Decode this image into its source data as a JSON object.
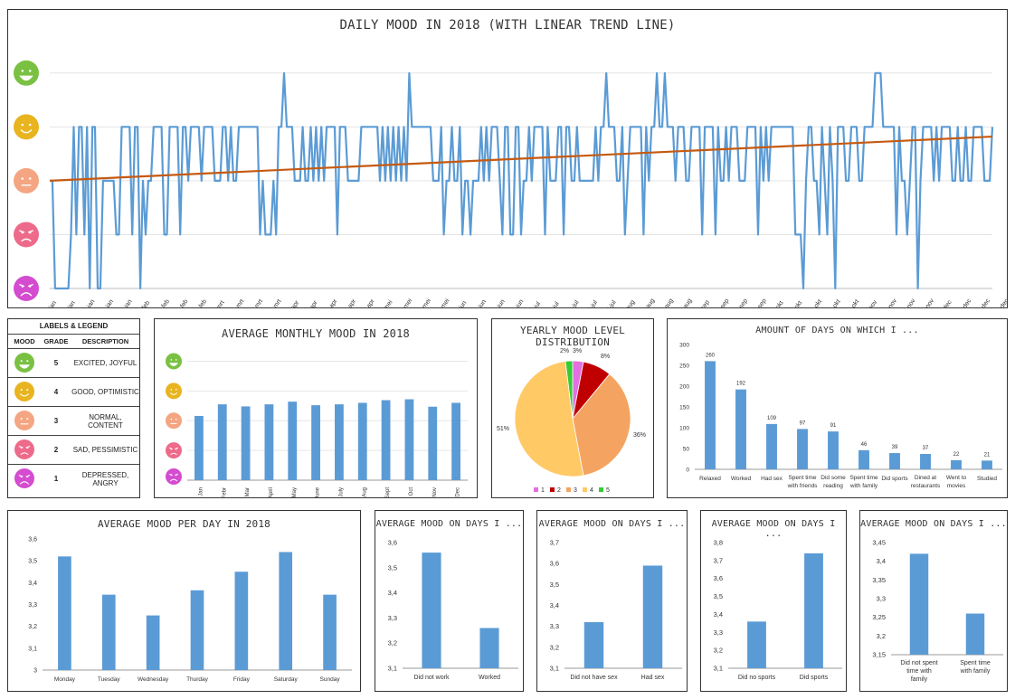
{
  "colors": {
    "bar": "#5b9bd5",
    "line": "#5b9bd5",
    "trend": "#c55a11",
    "face5": "#7ac143",
    "face4": "#e8b420",
    "face3": "#f4a582",
    "face2": "#ee6a8a",
    "face1": "#d44ccf"
  },
  "daily": {
    "title": "DAILY MOOD IN 2018 (WITH LINEAR TREND LINE)",
    "ylim": [
      1,
      5.5
    ],
    "xlabels": [
      "1-jan",
      "8-jan",
      "15-jan",
      "22-jan",
      "29-jan",
      "5-feb",
      "12-feb",
      "19-feb",
      "26-feb",
      "5-mrt",
      "12-mrt",
      "19-mrt",
      "26-mrt",
      "2-apr",
      "9-apr",
      "16-apr",
      "23-apr",
      "30-apr",
      "7-mei",
      "14-mei",
      "21-mei",
      "28-mei",
      "4-jun",
      "11-jun",
      "18-jun",
      "25-jun",
      "2-jul",
      "9-jul",
      "16-jul",
      "23-jul",
      "30-jul",
      "6-aug",
      "13-aug",
      "20-aug",
      "27-aug",
      "3-sep",
      "10-sep",
      "17-sep",
      "24-sep",
      "1-okt",
      "8-okt",
      "15-okt",
      "22-okt",
      "29-okt",
      "5-nov",
      "12-nov",
      "19-nov",
      "26-nov",
      "3-dec",
      "10-dec",
      "17-dec",
      "24-dec"
    ],
    "trend": [
      3,
      3.82
    ],
    "values": [
      3,
      3,
      1,
      1,
      1,
      1,
      1,
      1,
      2,
      4,
      2,
      4,
      4,
      2,
      4,
      1,
      4,
      4,
      1,
      1,
      3,
      3,
      3,
      3,
      3,
      2,
      2,
      4,
      4,
      4,
      4,
      2,
      4,
      4,
      1,
      3,
      2,
      3,
      3,
      4,
      4,
      4,
      4,
      2,
      2,
      4,
      4,
      4,
      4,
      2,
      4,
      4,
      3,
      4,
      4,
      4,
      4,
      3,
      4,
      4,
      4,
      4,
      3,
      3,
      3,
      4,
      4,
      3,
      4,
      3,
      3,
      4,
      4,
      4,
      4,
      4,
      4,
      4,
      4,
      2,
      3,
      2,
      2,
      2,
      3,
      2,
      4,
      4,
      5,
      4,
      4,
      4,
      3,
      3,
      3,
      4,
      3,
      3,
      4,
      3,
      4,
      3,
      4,
      3,
      4,
      4,
      4,
      4,
      2,
      4,
      4,
      4,
      3,
      3,
      3,
      3,
      3,
      4,
      4,
      4,
      4,
      4,
      4,
      4,
      3,
      4,
      3,
      4,
      3,
      4,
      3,
      4,
      3,
      4,
      3,
      5,
      4,
      4,
      4,
      4,
      4,
      4,
      4,
      4,
      3,
      3,
      3,
      4,
      2,
      3,
      3,
      4,
      3,
      3,
      4,
      2,
      3,
      3,
      2,
      3,
      3,
      3,
      4,
      3,
      4,
      3,
      4,
      4,
      4,
      3,
      2,
      4,
      4,
      2,
      2,
      4,
      4,
      2,
      3,
      3,
      4,
      3,
      4,
      4,
      4,
      4,
      2,
      4,
      3,
      3,
      3,
      4,
      4,
      2,
      4,
      4,
      3,
      3,
      4,
      3,
      3,
      3,
      3,
      3,
      3,
      4,
      3,
      4,
      4,
      5,
      4,
      4,
      4,
      3,
      3,
      4,
      2,
      3,
      4,
      4,
      4,
      4,
      4,
      2,
      4,
      3,
      4,
      4,
      5,
      4,
      4,
      5,
      4,
      4,
      4,
      3,
      4,
      4,
      4,
      3,
      3,
      4,
      4,
      4,
      4,
      2,
      4,
      4,
      4,
      4,
      2,
      4,
      3,
      3,
      4,
      3,
      4,
      4,
      4,
      3,
      3,
      3,
      4,
      4,
      4,
      4,
      2,
      4,
      3,
      4,
      3,
      4,
      4,
      4,
      4,
      4,
      4,
      4,
      4,
      4,
      2,
      2,
      2,
      1,
      3,
      4,
      4,
      3,
      3,
      2,
      4,
      3,
      2,
      4,
      3,
      1,
      4,
      4,
      4,
      3,
      3,
      4,
      4,
      4,
      3,
      3,
      4,
      4,
      4,
      4,
      5,
      5,
      5,
      4,
      4,
      4,
      4,
      4,
      2,
      4,
      3,
      3,
      2,
      3,
      4,
      4,
      1,
      3,
      4,
      4,
      4,
      4,
      3,
      4,
      3,
      4,
      4,
      4,
      4,
      3,
      3,
      4,
      3,
      3,
      4,
      3,
      3,
      4,
      4,
      4,
      4,
      3,
      3,
      3,
      4
    ]
  },
  "legend": {
    "title": "LABELS & LEGEND",
    "headers": [
      "MOOD",
      "GRADE",
      "DESCRIPTION"
    ],
    "rows": [
      {
        "grade": "5",
        "desc": "EXCITED, JOYFUL"
      },
      {
        "grade": "4",
        "desc": "GOOD, OPTIMISTIC"
      },
      {
        "grade": "3",
        "desc": "NORMAL, CONTENT"
      },
      {
        "grade": "2",
        "desc": "SAD, PESSIMISTIC"
      },
      {
        "grade": "1",
        "desc": "DEPRESSED, ANGRY"
      }
    ]
  },
  "chart_data": [
    {
      "type": "bar",
      "title": "AVERAGE MONTHLY MOOD IN 2018",
      "categories": [
        "Jan",
        "Febr",
        "Mar",
        "April",
        "May",
        "June",
        "July",
        "Aug",
        "Sept",
        "Oct",
        "Nov",
        "Dec"
      ],
      "values": [
        3.16,
        3.55,
        3.48,
        3.55,
        3.64,
        3.52,
        3.55,
        3.6,
        3.69,
        3.72,
        3.47,
        3.6
      ],
      "ylim": [
        1,
        5.5
      ]
    },
    {
      "type": "pie",
      "title": "YEARLY MOOD LEVEL DISTRIBUTION",
      "labels": [
        "1",
        "2",
        "3",
        "4",
        "5"
      ],
      "values": [
        3,
        8,
        36,
        51,
        2
      ],
      "display_labels": [
        "3%",
        "8%",
        "36%",
        "51%",
        "2%"
      ],
      "colors": [
        "#e36fe0",
        "#c00000",
        "#f4a460",
        "#ffc966",
        "#33cc33"
      ]
    },
    {
      "type": "bar",
      "title": "AMOUNT OF DAYS ON WHICH I ...",
      "categories": [
        "Relaxed",
        "Worked",
        "Had sex",
        "Spent time with friends",
        "Did some reading",
        "Spent time with family",
        "Did sports",
        "Dined at restaurants",
        "Went to movies",
        "Studied"
      ],
      "values": [
        260,
        192,
        109,
        97,
        91,
        46,
        39,
        37,
        22,
        21
      ],
      "ylim": [
        0,
        300
      ],
      "yticks": [
        "0",
        "50",
        "100",
        "150",
        "200",
        "250",
        "300"
      ]
    },
    {
      "type": "bar",
      "title": "AVERAGE MOOD PER DAY IN 2018",
      "categories": [
        "Monday",
        "Tuesday",
        "Wednesday",
        "Thurday",
        "Friday",
        "Saturday",
        "Sunday"
      ],
      "values": [
        3.52,
        3.345,
        3.25,
        3.365,
        3.45,
        3.54,
        3.345
      ],
      "ylim": [
        3,
        3.6
      ],
      "yticks": [
        "3",
        "3,1",
        "3,2",
        "3,3",
        "3,4",
        "3,5",
        "3,6"
      ]
    },
    {
      "type": "bar",
      "title": "AVERAGE MOOD ON DAYS I ...",
      "categories": [
        "Did not work",
        "Worked"
      ],
      "values": [
        3.56,
        3.26
      ],
      "ylim": [
        3.1,
        3.6
      ],
      "yticks": [
        "3,1",
        "3,2",
        "3,3",
        "3,4",
        "3,5",
        "3,6"
      ]
    },
    {
      "type": "bar",
      "title": "AVERAGE MOOD ON DAYS I ...",
      "categories": [
        "Did not have sex",
        "Had sex"
      ],
      "values": [
        3.32,
        3.59
      ],
      "ylim": [
        3.1,
        3.7
      ],
      "yticks": [
        "3,1",
        "3,2",
        "3,3",
        "3,4",
        "3,5",
        "3,6",
        "3,7"
      ]
    },
    {
      "type": "bar",
      "title": "AVERAGE MOOD ON DAYS I ...",
      "categories": [
        "Did no sports",
        "Did sports"
      ],
      "values": [
        3.36,
        3.74
      ],
      "ylim": [
        3.1,
        3.8
      ],
      "yticks": [
        "3,1",
        "3,2",
        "3,3",
        "3,4",
        "3,5",
        "3,6",
        "3,7",
        "3,8"
      ]
    },
    {
      "type": "bar",
      "title": "AVERAGE MOOD ON DAYS I ...",
      "categories": [
        "Did not spent time with family",
        "Spent time with family"
      ],
      "values": [
        3.42,
        3.26
      ],
      "ylim": [
        3.15,
        3.45
      ],
      "yticks": [
        "3,15",
        "3,2",
        "3,25",
        "3,3",
        "3,35",
        "3,4",
        "3,45"
      ]
    }
  ]
}
